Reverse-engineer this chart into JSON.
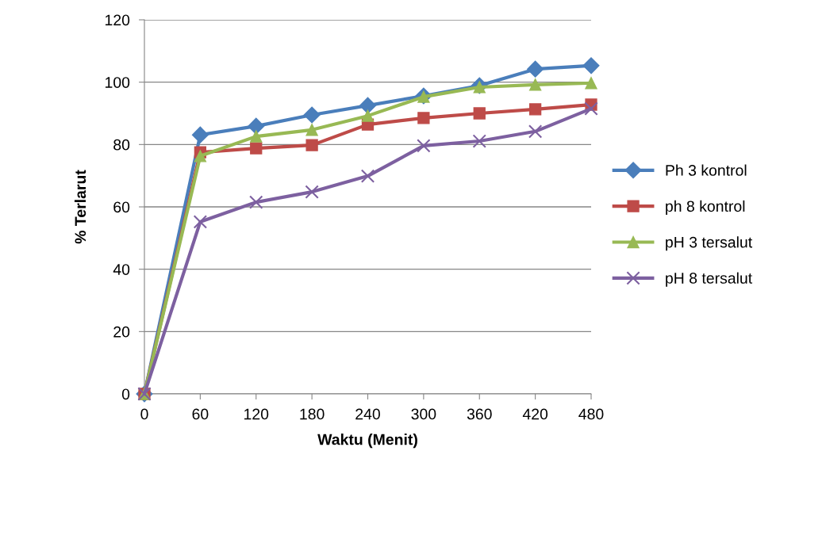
{
  "chart_data": {
    "type": "line",
    "xlabel": "Waktu (Menit)",
    "ylabel": "% Terlarut",
    "categories": [
      "0",
      "60",
      "120",
      "180",
      "240",
      "300",
      "360",
      "420",
      "480"
    ],
    "series": [
      {
        "name": "Ph 3 kontrol",
        "color": "#4a7ebb",
        "marker": "diamond",
        "values": [
          0,
          83.1,
          85.9,
          89.5,
          92.5,
          95.6,
          98.9,
          104.2,
          105.3
        ]
      },
      {
        "name": "ph 8 kontrol",
        "color": "#be4b48",
        "marker": "square",
        "values": [
          0,
          77.5,
          78.8,
          79.8,
          86.4,
          88.5,
          90.0,
          91.3,
          92.8
        ]
      },
      {
        "name": "pH 3 tersalut",
        "color": "#98b954",
        "marker": "triangle",
        "values": [
          0,
          76.3,
          82.6,
          84.7,
          89.2,
          95.3,
          98.4,
          99.2,
          99.7
        ]
      },
      {
        "name": "pH 8 tersalut",
        "color": "#7d60a0",
        "marker": "cross",
        "values": [
          0,
          55.2,
          61.5,
          64.8,
          69.9,
          79.6,
          81.1,
          84.2,
          91.5
        ]
      }
    ],
    "ylim": [
      0,
      120
    ],
    "yticks": [
      0,
      20,
      40,
      60,
      80,
      100,
      120
    ],
    "grid": "y",
    "legend": "right"
  }
}
